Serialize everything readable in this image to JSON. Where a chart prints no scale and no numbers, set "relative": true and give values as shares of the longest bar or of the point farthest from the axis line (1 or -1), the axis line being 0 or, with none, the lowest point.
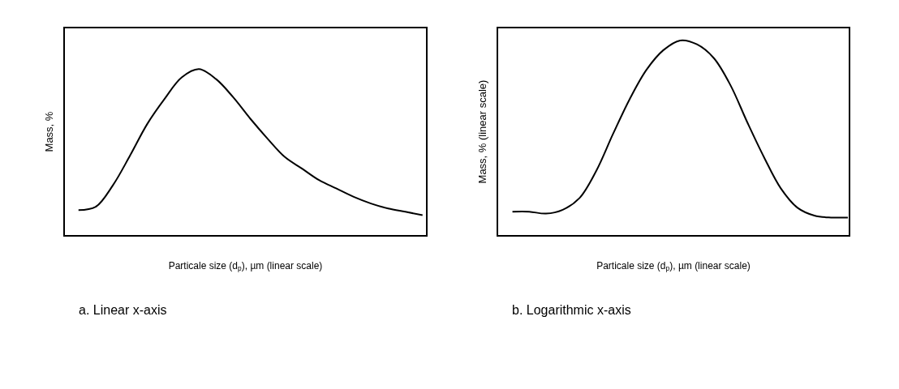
{
  "chart_data": [
    {
      "type": "line",
      "relative": true,
      "xlabel": "Particale size (d$_{p}$), µm (linear scale)",
      "ylabel": "Mass, %",
      "annotations": [
        "a. Linear x-axis"
      ],
      "categories": [
        null,
        null,
        null,
        null,
        null,
        null,
        null,
        null,
        null,
        null,
        null,
        null,
        null,
        null,
        null,
        null,
        null,
        null,
        null,
        null,
        null
      ],
      "series": [
        {
          "color": "#000000",
          "values": [
            0.15,
            0.17,
            0.3,
            0.48,
            0.67,
            0.82,
            0.95,
            1.0,
            0.94,
            0.83,
            0.7,
            0.58,
            0.47,
            0.4,
            0.33,
            0.28,
            0.23,
            0.19,
            0.16,
            0.14,
            0.12
          ]
        }
      ]
    },
    {
      "type": "line",
      "relative": true,
      "xlabel": "Particale size (d$_{p}$), µm (linear scale)",
      "ylabel": "Mass, % (linear scale)",
      "annotations": [
        "b. Logarithmic x-axis"
      ],
      "categories": [
        null,
        null,
        null,
        null,
        null,
        null,
        null,
        null,
        null,
        null,
        null,
        null,
        null,
        null,
        null,
        null,
        null,
        null,
        null,
        null,
        null
      ],
      "series": [
        {
          "color": "#000000",
          "values": [
            0.12,
            0.12,
            0.11,
            0.13,
            0.19,
            0.33,
            0.52,
            0.7,
            0.85,
            0.95,
            1.0,
            0.98,
            0.91,
            0.77,
            0.58,
            0.4,
            0.24,
            0.14,
            0.1,
            0.09,
            0.09
          ]
        }
      ]
    }
  ]
}
